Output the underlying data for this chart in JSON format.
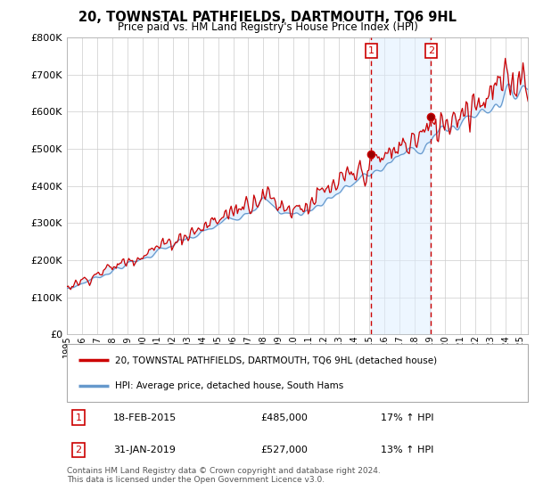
{
  "title": "20, TOWNSTAL PATHFIELDS, DARTMOUTH, TQ6 9HL",
  "subtitle": "Price paid vs. HM Land Registry's House Price Index (HPI)",
  "ylim": [
    0,
    800000
  ],
  "xlim_start": 1995.0,
  "xlim_end": 2025.5,
  "sale1_x": 2015.125,
  "sale1_y": 485000,
  "sale1_label": "1",
  "sale1_date": "18-FEB-2015",
  "sale1_price": "£485,000",
  "sale1_hpi": "17% ↑ HPI",
  "sale2_x": 2019.083,
  "sale2_y": 527000,
  "sale2_label": "2",
  "sale2_date": "31-JAN-2019",
  "sale2_price": "£527,000",
  "sale2_hpi": "13% ↑ HPI",
  "legend_line1": "20, TOWNSTAL PATHFIELDS, DARTMOUTH, TQ6 9HL (detached house)",
  "legend_line2": "HPI: Average price, detached house, South Hams",
  "footnote": "Contains HM Land Registry data © Crown copyright and database right 2024.\nThis data is licensed under the Open Government Licence v3.0.",
  "line_color_red": "#cc0000",
  "line_color_blue": "#6699cc",
  "shade_color": "#ddeeff",
  "grid_color": "#cccccc",
  "background_color": "#ffffff",
  "sale_box_color": "#cc0000",
  "ytick_vals": [
    0,
    100000,
    200000,
    300000,
    400000,
    500000,
    600000,
    700000,
    800000
  ],
  "ytick_labels": [
    "£0",
    "£100K",
    "£200K",
    "£300K",
    "£400K",
    "£500K",
    "£600K",
    "£700K",
    "£800K"
  ]
}
